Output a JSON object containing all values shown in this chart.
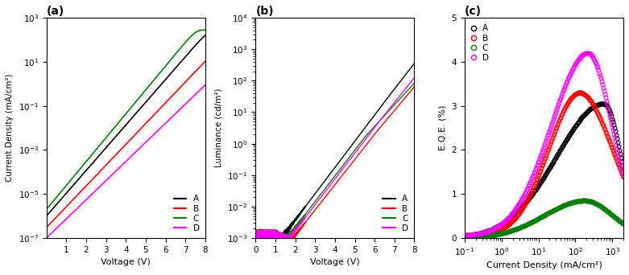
{
  "colors": {
    "A": "#000000",
    "B": "#ff0000",
    "C": "#008000",
    "D": "#ff00ff"
  },
  "panel_a": {
    "title": "(a)",
    "xlabel": "Voltage (V)",
    "ylabel": "Current Density (mA/cm²)",
    "xlim": [
      0,
      8
    ],
    "ylim": [
      1e-07,
      1000.0
    ],
    "xticks": [
      1,
      2,
      3,
      4,
      5,
      6,
      7,
      8
    ]
  },
  "panel_b": {
    "title": "(b)",
    "xlabel": "Voltage (V)",
    "ylabel": "Luminance (cd/m²)",
    "xlim": [
      0,
      8
    ],
    "ylim": [
      0.001,
      10000.0
    ],
    "xticks": [
      0,
      1,
      2,
      3,
      4,
      5,
      6,
      7,
      8
    ]
  },
  "panel_c": {
    "title": "(c)",
    "xlabel": "Current Density (mA/cm²)",
    "ylabel": "E.Q.E. (%)",
    "xlim": [
      0.1,
      2000
    ],
    "ylim": [
      0,
      5.0
    ],
    "yticks": [
      0.0,
      1.0,
      2.0,
      3.0,
      4.0,
      5.0
    ]
  }
}
